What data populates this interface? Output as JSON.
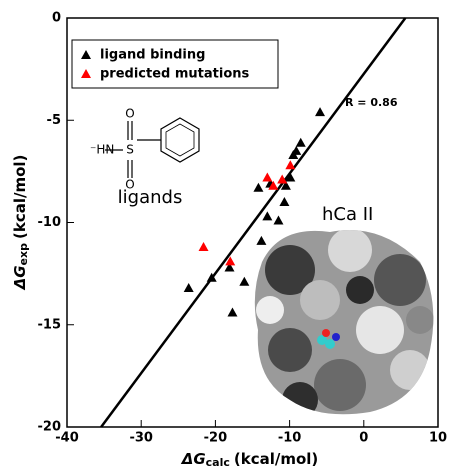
{
  "chart_data": {
    "type": "scatter",
    "x_label": {
      "symbol": "ΔG",
      "sub": "calc",
      "unit": "(kcal/mol)"
    },
    "y_label": {
      "symbol": "ΔG",
      "sub": "exp",
      "unit": "(kcal/mol)"
    },
    "xlim": [
      -40,
      10
    ],
    "xticks": [
      -40,
      -30,
      -20,
      -10,
      0,
      10
    ],
    "ylim": [
      -20,
      0
    ],
    "yticks": [
      -20,
      -15,
      -10,
      -5,
      0
    ],
    "legend": "upper left",
    "series": [
      {
        "name": "ligand binding",
        "color": "#000000",
        "x": [
          -23.6,
          -20.5,
          -18.1,
          -16.1,
          -17.7,
          -13.8,
          -14.2,
          -13.0,
          -12.6,
          -11.5,
          -10.7,
          -10.5,
          -9.9,
          -9.5,
          -9.1,
          -8.5,
          -5.9
        ],
        "values": [
          -13.2,
          -12.7,
          -12.2,
          -12.9,
          -14.4,
          -10.9,
          -8.3,
          -9.7,
          -8.1,
          -9.9,
          -9.0,
          -8.2,
          -7.8,
          -6.7,
          -6.5,
          -6.1,
          -4.6
        ]
      },
      {
        "name": "predicted mutations",
        "color": "#ff0000",
        "x": [
          -21.6,
          -18.0,
          -13.0,
          -12.2,
          -11.0,
          -9.9
        ],
        "values": [
          -11.2,
          -11.9,
          -7.8,
          -8.2,
          -7.9,
          -7.2
        ]
      }
    ],
    "fit_line": {
      "x": [
        -35.4,
        5.6
      ],
      "values": [
        -20,
        0
      ],
      "label": "R = 0.86"
    },
    "annotations": {
      "ligands": "ligands",
      "protein": "hCa II",
      "amine": "⁻HN",
      "sulfur": "S",
      "oxygen_top": "O",
      "oxygen_bottom": "O"
    }
  }
}
